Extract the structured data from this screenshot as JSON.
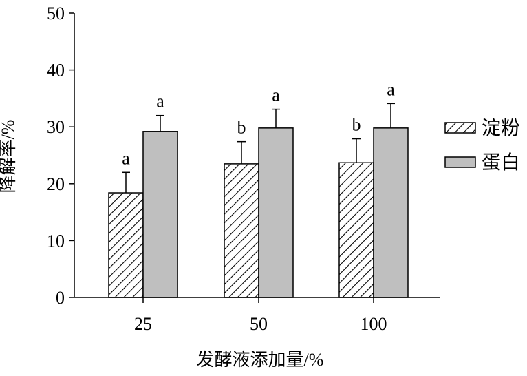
{
  "chart_data": {
    "type": "bar",
    "xlabel": "发酵液添加量/%",
    "ylabel": "降解率/%",
    "ylim": [
      0,
      50
    ],
    "yticks": [
      0,
      10,
      20,
      30,
      40,
      50
    ],
    "categories": [
      "25",
      "50",
      "100"
    ],
    "series": [
      {
        "name": "淀粉",
        "pattern": "diagonal-hatch",
        "color": "#ffffff",
        "values": [
          18.4,
          23.5,
          23.7
        ],
        "errors": [
          3.6,
          3.9,
          4.2
        ],
        "letters": [
          "a",
          "b",
          "b"
        ]
      },
      {
        "name": "蛋白",
        "pattern": "solid",
        "color": "#bfbfbf",
        "values": [
          29.2,
          29.8,
          29.8
        ],
        "errors": [
          2.8,
          3.3,
          4.3
        ],
        "letters": [
          "a",
          "a",
          "a"
        ]
      }
    ],
    "legend": "right"
  }
}
